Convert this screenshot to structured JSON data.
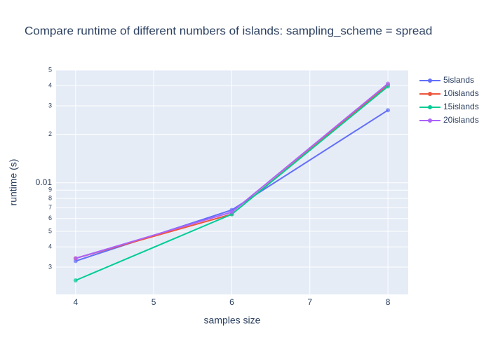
{
  "chart_data": {
    "type": "line",
    "title": "Compare runtime of different numbers of islands: sampling_scheme = spread",
    "x_label": "samples size",
    "y_label": "runtime (s)",
    "x": [
      4,
      6,
      8
    ],
    "series": [
      {
        "name": "5islands",
        "color": "#636efa",
        "values": [
          0.00327,
          0.00678,
          0.0282
        ]
      },
      {
        "name": "10islands",
        "color": "#EF553B",
        "values": [
          0.0034,
          0.00638,
          0.0404
        ]
      },
      {
        "name": "15islands",
        "color": "#00cc96",
        "values": [
          0.00248,
          0.00638,
          0.0396
        ]
      },
      {
        "name": "20islands",
        "color": "#ab63fa",
        "values": [
          0.0034,
          0.00658,
          0.0412
        ]
      }
    ],
    "xlim": [
      3.75,
      8.26
    ],
    "xticks": [
      4,
      5,
      6,
      7,
      8
    ],
    "ylim": [
      0.00203,
      0.05
    ],
    "log_y": true,
    "yticks": [
      {
        "value": 0.003,
        "label": "3"
      },
      {
        "value": 0.004,
        "label": "4"
      },
      {
        "value": 0.005,
        "label": "5"
      },
      {
        "value": 0.006,
        "label": "6"
      },
      {
        "value": 0.007,
        "label": "7"
      },
      {
        "value": 0.008,
        "label": "8"
      },
      {
        "value": 0.009,
        "label": "9"
      },
      0.01,
      {
        "value": 0.02,
        "label": "2"
      },
      {
        "value": 0.03,
        "label": "3"
      },
      {
        "value": 0.04,
        "label": "4"
      },
      {
        "value": 0.05,
        "label": "5"
      }
    ],
    "grid": true,
    "legend": "right"
  }
}
